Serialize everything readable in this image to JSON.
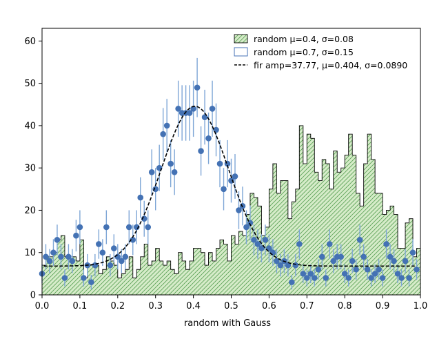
{
  "chart_data": {
    "type": "histogram",
    "title": "",
    "xlabel": "random with Gauss",
    "ylabel": "",
    "xlim": [
      0.0,
      1.0
    ],
    "ylim": [
      0,
      63
    ],
    "xticks": [
      "0.0",
      "0.1",
      "0.2",
      "0.3",
      "0.4",
      "0.5",
      "0.6",
      "0.7",
      "0.8",
      "0.9",
      "1.0"
    ],
    "xtick_values": [
      0.0,
      0.1,
      0.2,
      0.3,
      0.4,
      0.5,
      0.6,
      0.7,
      0.8,
      0.9,
      1.0
    ],
    "yticks": [
      "0",
      "10",
      "20",
      "30",
      "40",
      "50",
      "60"
    ],
    "ytick_values": [
      0,
      10,
      20,
      30,
      40,
      50,
      60
    ],
    "grid": false,
    "legend_position": "top-right",
    "colors": {
      "hist_fill": "#d6ecc9",
      "hist_hatch": "#5ea35a",
      "hist_edge": "#000000",
      "points": "#4472b4",
      "errorbars": "#7ea6d6",
      "fit": "#000000"
    },
    "series": [
      {
        "name": "random μ=0.4, σ=0.08",
        "kind": "step-histogram-hatched",
        "bin_width": 0.01,
        "bin_start": 0.0,
        "values": [
          7,
          9,
          9,
          10,
          13,
          14,
          9,
          8,
          9,
          8,
          13,
          4,
          7,
          7,
          7,
          5,
          6,
          9,
          8,
          7,
          4,
          5,
          6,
          9,
          4,
          6,
          9,
          12,
          7,
          8,
          11,
          8,
          7,
          8,
          6,
          5,
          10,
          8,
          6,
          8,
          11,
          11,
          10,
          7,
          10,
          8,
          11,
          13,
          12,
          8,
          14,
          12,
          15,
          14,
          19,
          24,
          23,
          21,
          14,
          16,
          25,
          31,
          24,
          27,
          27,
          18,
          22,
          25,
          40,
          31,
          38,
          37,
          29,
          27,
          32,
          31,
          25,
          34,
          29,
          30,
          33,
          38,
          33,
          24,
          21,
          31,
          38,
          32,
          24,
          24,
          19,
          20,
          21,
          19,
          11,
          11,
          17,
          18,
          9,
          11
        ]
      },
      {
        "name": "random μ=0.7, σ=0.15",
        "kind": "points-with-errorbars",
        "x": [
          0.0,
          0.01,
          0.02,
          0.03,
          0.04,
          0.05,
          0.06,
          0.07,
          0.08,
          0.09,
          0.1,
          0.11,
          0.12,
          0.13,
          0.14,
          0.15,
          0.16,
          0.17,
          0.18,
          0.19,
          0.2,
          0.21,
          0.22,
          0.23,
          0.24,
          0.25,
          0.26,
          0.27,
          0.28,
          0.29,
          0.3,
          0.31,
          0.32,
          0.33,
          0.34,
          0.35,
          0.36,
          0.37,
          0.38,
          0.39,
          0.4,
          0.41,
          0.42,
          0.43,
          0.44,
          0.45,
          0.46,
          0.47,
          0.48,
          0.49,
          0.5,
          0.51,
          0.52,
          0.53,
          0.54,
          0.55,
          0.56,
          0.57,
          0.58,
          0.59,
          0.6,
          0.61,
          0.62,
          0.63,
          0.64,
          0.65,
          0.66,
          0.67,
          0.68,
          0.69,
          0.7,
          0.71,
          0.72,
          0.73,
          0.74,
          0.75,
          0.76,
          0.77,
          0.78,
          0.79,
          0.8,
          0.81,
          0.82,
          0.83,
          0.84,
          0.85,
          0.86,
          0.87,
          0.88,
          0.89,
          0.9,
          0.91,
          0.92,
          0.93,
          0.94,
          0.95,
          0.96,
          0.97,
          0.98,
          0.99
        ],
        "values": [
          5,
          9,
          8,
          10,
          13,
          9,
          4,
          9,
          8,
          14,
          16,
          4,
          7,
          3,
          7,
          12,
          10,
          16,
          7,
          11,
          9,
          8,
          9,
          16,
          13,
          16,
          23,
          18,
          16,
          29,
          25,
          30,
          38,
          40,
          31,
          29,
          44,
          43,
          43,
          43,
          44,
          49,
          34,
          42,
          37,
          44,
          39,
          31,
          25,
          31,
          27,
          28,
          20,
          21,
          16,
          17,
          13,
          12,
          11,
          13,
          11,
          10,
          8,
          7,
          8,
          7,
          3,
          7,
          12,
          5,
          4,
          5,
          4,
          6,
          9,
          4,
          12,
          8,
          9,
          9,
          5,
          4,
          8,
          6,
          13,
          9,
          6,
          4,
          5,
          6,
          4,
          12,
          9,
          8,
          5,
          4,
          8,
          4,
          10,
          6
        ],
        "errors": "sqrt"
      },
      {
        "name": "fir amp=37.77, μ=0.404, σ=0.0890",
        "kind": "gaussian-fit-dashed",
        "amp": 37.77,
        "mu": 0.404,
        "sigma": 0.089,
        "offset": 6.8,
        "x_range": [
          0.005,
          0.985
        ]
      }
    ]
  }
}
